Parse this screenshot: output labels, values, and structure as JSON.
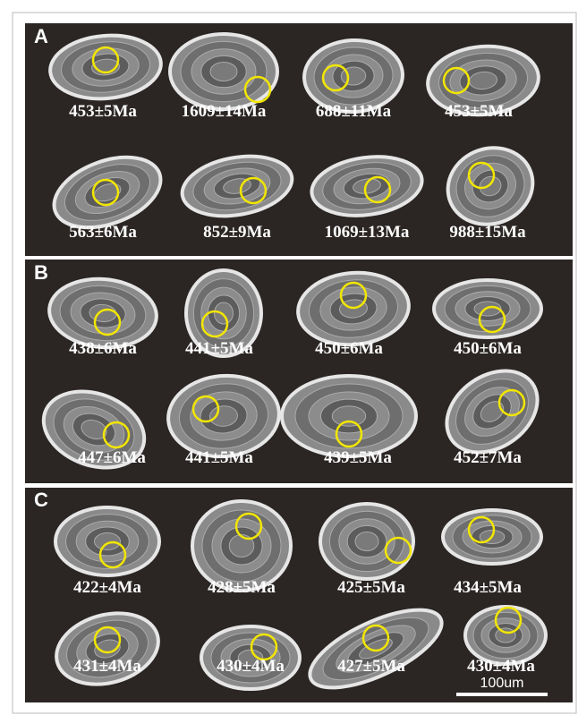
{
  "panels": [
    {
      "label": "A",
      "grains": [
        {
          "age": "453±5Ma"
        },
        {
          "age": "1609±14Ma"
        },
        {
          "age": "688±11Ma"
        },
        {
          "age": "453±5Ma"
        },
        {
          "age": "563±6Ma"
        },
        {
          "age": "852±9Ma"
        },
        {
          "age": "1069±13Ma"
        },
        {
          "age": "988±15Ma"
        }
      ]
    },
    {
      "label": "B",
      "grains": [
        {
          "age": "438±6Ma"
        },
        {
          "age": "441±5Ma"
        },
        {
          "age": "450±6Ma"
        },
        {
          "age": "450±6Ma"
        },
        {
          "age": "447±6Ma"
        },
        {
          "age": "441±5Ma"
        },
        {
          "age": "439±5Ma"
        },
        {
          "age": "452±7Ma"
        }
      ]
    },
    {
      "label": "C",
      "grains": [
        {
          "age": "422±4Ma"
        },
        {
          "age": "428±5Ma"
        },
        {
          "age": "425±5Ma"
        },
        {
          "age": "434±5Ma"
        },
        {
          "age": "431±4Ma"
        },
        {
          "age": "430±4Ma"
        },
        {
          "age": "427±5Ma"
        },
        {
          "age": "430±4Ma"
        }
      ]
    }
  ],
  "scale_bar": "100um"
}
